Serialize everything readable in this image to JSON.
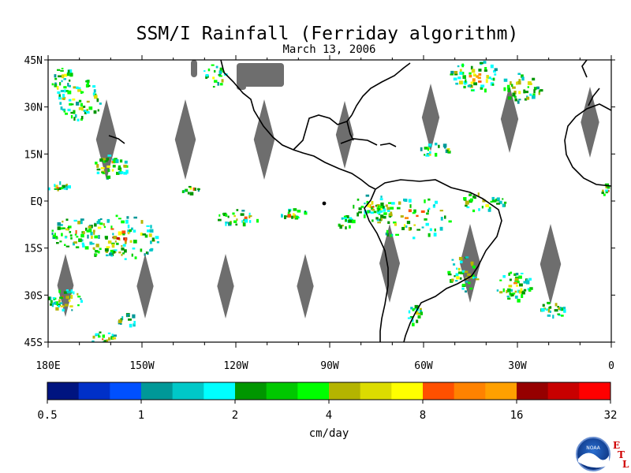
{
  "title": "SSM/I Rainfall (Ferriday algorithm)",
  "date": "March 13, 2006",
  "map": {
    "lon_range": [
      180,
      360
    ],
    "lat_range": [
      -45,
      45
    ],
    "lat_ticks": [
      {
        "lat": 45,
        "label": "45N"
      },
      {
        "lat": 30,
        "label": "30N"
      },
      {
        "lat": 15,
        "label": "15N"
      },
      {
        "lat": 0,
        "label": "EQ"
      },
      {
        "lat": -15,
        "label": "15S"
      },
      {
        "lat": -30,
        "label": "30S"
      },
      {
        "lat": -45,
        "label": "45S"
      }
    ],
    "lon_ticks": [
      {
        "lon": 180,
        "label": "180E"
      },
      {
        "lon": 210,
        "label": "150W"
      },
      {
        "lon": 240,
        "label": "120W"
      },
      {
        "lon": 270,
        "label": "90W"
      },
      {
        "lon": 300,
        "label": "60W"
      },
      {
        "lon": 330,
        "label": "30W"
      },
      {
        "lon": 360,
        "label": "0"
      }
    ],
    "missing_color": "#6e6e6e",
    "coast_color": "#000000"
  },
  "colorbar": {
    "colors": [
      "#001480",
      "#0030c8",
      "#0050ff",
      "#009898",
      "#00c8c8",
      "#00ffff",
      "#009600",
      "#00c800",
      "#00ff00",
      "#b4b400",
      "#dcdc00",
      "#ffff00",
      "#ff5000",
      "#ff8200",
      "#ffa000",
      "#960000",
      "#c80000",
      "#ff0000"
    ],
    "tick_labels": [
      "0.5",
      "1",
      "2",
      "4",
      "8",
      "16",
      "32"
    ],
    "unit_label": "cm/day"
  },
  "logo": {
    "text": "NOAA",
    "letters": [
      "E",
      "T",
      "L"
    ]
  }
}
